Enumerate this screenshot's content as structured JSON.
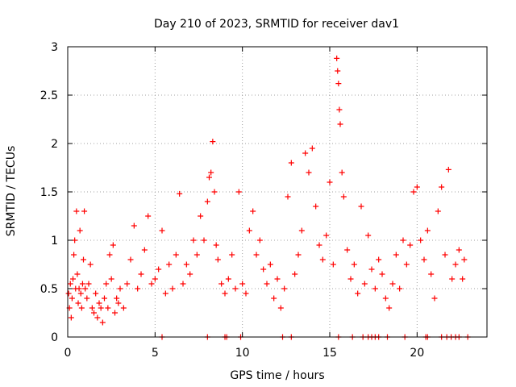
{
  "chart_data": {
    "type": "scatter",
    "title": "Day 210 of 2023, SRMTID for receiver dav1",
    "xlabel": "GPS time / hours",
    "ylabel": "SRMTID / TECUs",
    "xlim": [
      0,
      24
    ],
    "ylim": [
      0,
      3
    ],
    "xticks": [
      0,
      5,
      10,
      15,
      20
    ],
    "yticks": [
      0,
      0.5,
      1,
      1.5,
      2,
      2.5,
      3
    ],
    "xtick_labels": [
      "0",
      "5",
      "10",
      "15",
      "20"
    ],
    "ytick_labels": [
      "0",
      "0.5",
      "1",
      "1.5",
      "2",
      "2.5",
      "3"
    ],
    "grid": true,
    "marker": "+",
    "series": [
      {
        "name": "SRMTID",
        "color": "#ff0000",
        "points": [
          [
            0.05,
            0.45
          ],
          [
            0.1,
            0.3
          ],
          [
            0.15,
            0.55
          ],
          [
            0.2,
            0.2
          ],
          [
            0.25,
            0.4
          ],
          [
            0.3,
            0.6
          ],
          [
            0.35,
            0.85
          ],
          [
            0.4,
            1.0
          ],
          [
            0.45,
            0.5
          ],
          [
            0.5,
            1.3
          ],
          [
            0.55,
            0.65
          ],
          [
            0.6,
            0.35
          ],
          [
            0.65,
            0.5
          ],
          [
            0.7,
            1.1
          ],
          [
            0.75,
            0.45
          ],
          [
            0.8,
            0.3
          ],
          [
            0.85,
            0.55
          ],
          [
            0.9,
            0.8
          ],
          [
            0.95,
            1.3
          ],
          [
            1.0,
            0.5
          ],
          [
            1.1,
            0.4
          ],
          [
            1.2,
            0.55
          ],
          [
            1.3,
            0.75
          ],
          [
            1.4,
            0.3
          ],
          [
            1.5,
            0.25
          ],
          [
            1.6,
            0.45
          ],
          [
            1.7,
            0.2
          ],
          [
            1.8,
            0.35
          ],
          [
            1.9,
            0.3
          ],
          [
            2.0,
            0.15
          ],
          [
            2.1,
            0.4
          ],
          [
            2.2,
            0.55
          ],
          [
            2.3,
            0.3
          ],
          [
            2.4,
            0.85
          ],
          [
            2.5,
            0.6
          ],
          [
            2.6,
            0.95
          ],
          [
            2.7,
            0.25
          ],
          [
            2.8,
            0.4
          ],
          [
            2.9,
            0.35
          ],
          [
            3.0,
            0.5
          ],
          [
            3.2,
            0.3
          ],
          [
            3.4,
            0.55
          ],
          [
            3.6,
            0.8
          ],
          [
            3.8,
            1.15
          ],
          [
            4.0,
            0.5
          ],
          [
            4.2,
            0.65
          ],
          [
            4.4,
            0.9
          ],
          [
            4.6,
            1.25
          ],
          [
            4.8,
            0.55
          ],
          [
            5.0,
            0.6
          ],
          [
            5.2,
            0.7
          ],
          [
            5.4,
            1.1
          ],
          [
            5.6,
            0.45
          ],
          [
            5.8,
            0.75
          ],
          [
            6.0,
            0.5
          ],
          [
            6.2,
            0.85
          ],
          [
            6.4,
            1.48
          ],
          [
            6.6,
            0.55
          ],
          [
            6.8,
            0.75
          ],
          [
            7.0,
            0.65
          ],
          [
            7.2,
            1.0
          ],
          [
            7.4,
            0.85
          ],
          [
            7.6,
            1.25
          ],
          [
            7.8,
            1.0
          ],
          [
            8.0,
            1.4
          ],
          [
            8.1,
            1.65
          ],
          [
            8.2,
            1.7
          ],
          [
            8.3,
            2.02
          ],
          [
            8.4,
            1.5
          ],
          [
            8.5,
            0.95
          ],
          [
            8.6,
            0.8
          ],
          [
            8.8,
            0.55
          ],
          [
            9.0,
            0.45
          ],
          [
            9.2,
            0.6
          ],
          [
            9.4,
            0.85
          ],
          [
            9.6,
            0.5
          ],
          [
            9.8,
            1.5
          ],
          [
            10.0,
            0.55
          ],
          [
            10.2,
            0.45
          ],
          [
            10.4,
            1.1
          ],
          [
            10.6,
            1.3
          ],
          [
            10.8,
            0.85
          ],
          [
            11.0,
            1.0
          ],
          [
            11.2,
            0.7
          ],
          [
            11.4,
            0.55
          ],
          [
            11.6,
            0.75
          ],
          [
            11.8,
            0.4
          ],
          [
            12.0,
            0.6
          ],
          [
            12.2,
            0.3
          ],
          [
            12.4,
            0.5
          ],
          [
            12.6,
            1.45
          ],
          [
            12.8,
            1.8
          ],
          [
            13.0,
            0.65
          ],
          [
            13.2,
            0.85
          ],
          [
            13.4,
            1.1
          ],
          [
            13.6,
            1.9
          ],
          [
            13.8,
            1.7
          ],
          [
            14.0,
            1.95
          ],
          [
            14.2,
            1.35
          ],
          [
            14.4,
            0.95
          ],
          [
            14.6,
            0.8
          ],
          [
            14.8,
            1.05
          ],
          [
            15.0,
            1.6
          ],
          [
            15.2,
            0.75
          ],
          [
            15.4,
            2.88
          ],
          [
            15.45,
            2.75
          ],
          [
            15.5,
            2.62
          ],
          [
            15.55,
            2.35
          ],
          [
            15.6,
            2.2
          ],
          [
            15.7,
            1.7
          ],
          [
            15.8,
            1.45
          ],
          [
            16.0,
            0.9
          ],
          [
            16.2,
            0.6
          ],
          [
            16.4,
            0.75
          ],
          [
            16.6,
            0.45
          ],
          [
            16.8,
            1.35
          ],
          [
            17.0,
            0.55
          ],
          [
            17.2,
            1.05
          ],
          [
            17.4,
            0.7
          ],
          [
            17.6,
            0.5
          ],
          [
            17.8,
            0.8
          ],
          [
            18.0,
            0.65
          ],
          [
            18.2,
            0.4
          ],
          [
            18.4,
            0.3
          ],
          [
            18.6,
            0.55
          ],
          [
            18.8,
            0.85
          ],
          [
            19.0,
            0.5
          ],
          [
            19.2,
            1.0
          ],
          [
            19.4,
            0.75
          ],
          [
            19.6,
            0.95
          ],
          [
            19.8,
            1.5
          ],
          [
            20.0,
            1.55
          ],
          [
            20.2,
            1.0
          ],
          [
            20.4,
            0.8
          ],
          [
            20.6,
            1.1
          ],
          [
            20.8,
            0.65
          ],
          [
            21.0,
            0.4
          ],
          [
            21.2,
            1.3
          ],
          [
            21.4,
            1.55
          ],
          [
            21.6,
            0.85
          ],
          [
            21.8,
            1.73
          ],
          [
            22.0,
            0.6
          ],
          [
            22.2,
            0.75
          ],
          [
            22.4,
            0.9
          ],
          [
            22.6,
            0.6
          ],
          [
            22.7,
            0.8
          ],
          [
            5.4,
            0.0
          ],
          [
            8.0,
            0.0
          ],
          [
            9.0,
            0.0
          ],
          [
            9.1,
            0.0
          ],
          [
            9.9,
            0.0
          ],
          [
            12.3,
            0.0
          ],
          [
            12.8,
            0.0
          ],
          [
            15.5,
            0.0
          ],
          [
            16.3,
            0.0
          ],
          [
            16.9,
            0.0
          ],
          [
            17.2,
            0.0
          ],
          [
            17.4,
            0.0
          ],
          [
            17.6,
            0.0
          ],
          [
            17.8,
            0.0
          ],
          [
            18.3,
            0.0
          ],
          [
            19.3,
            0.0
          ],
          [
            20.5,
            0.0
          ],
          [
            20.6,
            0.0
          ],
          [
            21.4,
            0.0
          ],
          [
            21.7,
            0.0
          ],
          [
            21.95,
            0.0
          ],
          [
            22.2,
            0.0
          ],
          [
            22.4,
            0.0
          ],
          [
            22.9,
            0.0
          ]
        ]
      }
    ]
  }
}
